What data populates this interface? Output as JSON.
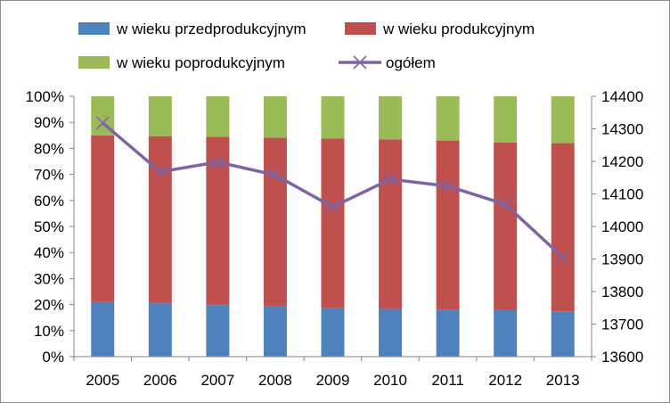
{
  "chart_data": {
    "type": "bar",
    "stacked": true,
    "normalized": true,
    "categories": [
      "2005",
      "2006",
      "2007",
      "2008",
      "2009",
      "2010",
      "2011",
      "2012",
      "2013"
    ],
    "series": [
      {
        "name": "w wieku przedprodukcyjnym",
        "color": "#4f81bd",
        "axis": "left",
        "values": [
          0.21,
          0.205,
          0.198,
          0.193,
          0.186,
          0.183,
          0.181,
          0.18,
          0.174
        ]
      },
      {
        "name": "w wieku produkcyjnym",
        "color": "#c0504d",
        "axis": "left",
        "values": [
          0.64,
          0.642,
          0.646,
          0.648,
          0.652,
          0.651,
          0.649,
          0.643,
          0.646
        ]
      },
      {
        "name": "w wieku poprodukcyjnym",
        "color": "#9bbb59",
        "axis": "left",
        "values": [
          0.15,
          0.153,
          0.156,
          0.159,
          0.162,
          0.166,
          0.17,
          0.177,
          0.18
        ]
      },
      {
        "name": "ogółem",
        "type": "line",
        "color": "#8064a2",
        "axis": "right",
        "values": [
          14318,
          14168,
          14198,
          14158,
          14060,
          14145,
          14124,
          14068,
          13905
        ]
      }
    ],
    "y_left": {
      "min": 0,
      "max": 1,
      "ticks": [
        "0%",
        "10%",
        "20%",
        "30%",
        "40%",
        "50%",
        "60%",
        "70%",
        "80%",
        "90%",
        "100%"
      ]
    },
    "y_right": {
      "min": 13600,
      "max": 14400,
      "ticks": [
        "13600",
        "13700",
        "13800",
        "13900",
        "14000",
        "14100",
        "14200",
        "14300",
        "14400"
      ]
    },
    "legend_position": "top",
    "grid": false
  }
}
